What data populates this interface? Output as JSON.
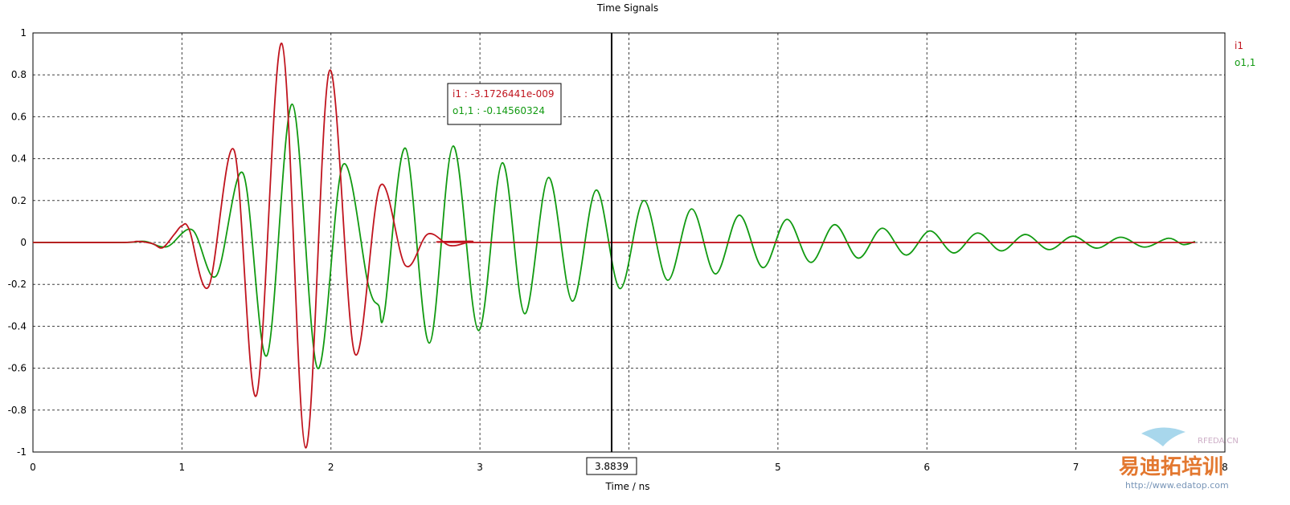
{
  "chart_data": {
    "type": "line",
    "title": "Time Signals",
    "xlabel": "Time / ns",
    "ylabel": "",
    "xlim": [
      0,
      8
    ],
    "ylim": [
      -1,
      1
    ],
    "x_ticks": [
      0,
      1,
      2,
      3,
      4,
      5,
      6,
      7,
      8
    ],
    "y_ticks": [
      -1,
      -0.8,
      -0.6,
      -0.4,
      -0.2,
      0,
      0.2,
      0.4,
      0.6,
      0.8,
      1
    ],
    "x_tick_labels": [
      "0",
      "1",
      "2",
      "3",
      "",
      "5",
      "6",
      "7",
      "8"
    ],
    "y_tick_labels": [
      "-1",
      "-0.8",
      "-0.6",
      "-0.4",
      "-0.2",
      "0",
      "0.2",
      "0.4",
      "0.6",
      "0.8",
      "1"
    ],
    "grid": true,
    "legend_position": "right",
    "cursor": {
      "x": 3.8839,
      "label": "3.8839",
      "readouts": [
        {
          "series": "i1",
          "text": "i1 : -3.1726441e-009"
        },
        {
          "series": "o1,1",
          "text": "o1,1 : -0.14560324"
        }
      ]
    },
    "series": [
      {
        "name": "i1",
        "color": "#c0141e",
        "points": [
          [
            0,
            0
          ],
          [
            0.6,
            0
          ],
          [
            0.7,
            0.005
          ],
          [
            0.8,
            -0.005
          ],
          [
            0.87,
            -0.025
          ],
          [
            0.95,
            0.04
          ],
          [
            1.0,
            0.08
          ],
          [
            1.05,
            0.06
          ],
          [
            1.18,
            -0.21
          ],
          [
            1.35,
            0.44
          ],
          [
            1.5,
            -0.73
          ],
          [
            1.67,
            0.95
          ],
          [
            1.83,
            -0.98
          ],
          [
            1.99,
            0.82
          ],
          [
            2.16,
            -0.53
          ],
          [
            2.33,
            0.27
          ],
          [
            2.5,
            -0.11
          ],
          [
            2.65,
            0.04
          ],
          [
            2.8,
            -0.015
          ],
          [
            2.95,
            0.005
          ],
          [
            3.1,
            0
          ],
          [
            7.8,
            0
          ]
        ]
      },
      {
        "name": "o1,1",
        "color": "#119a11",
        "points": [
          [
            0,
            0
          ],
          [
            0.6,
            0
          ],
          [
            0.75,
            0.005
          ],
          [
            0.9,
            -0.02
          ],
          [
            1.07,
            0.06
          ],
          [
            1.23,
            -0.16
          ],
          [
            1.41,
            0.33
          ],
          [
            1.57,
            -0.54
          ],
          [
            1.74,
            0.66
          ],
          [
            1.91,
            -0.6
          ],
          [
            2.08,
            0.37
          ],
          [
            2.25,
            -0.2
          ],
          [
            2.32,
            -0.3
          ],
          [
            2.36,
            -0.33
          ],
          [
            2.5,
            0.45
          ],
          [
            2.66,
            -0.48
          ],
          [
            2.82,
            0.46
          ],
          [
            2.99,
            -0.42
          ],
          [
            3.15,
            0.38
          ],
          [
            3.3,
            -0.34
          ],
          [
            3.46,
            0.31
          ],
          [
            3.62,
            -0.28
          ],
          [
            3.78,
            0.25
          ],
          [
            3.94,
            -0.22
          ],
          [
            4.1,
            0.2
          ],
          [
            4.26,
            -0.18
          ],
          [
            4.42,
            0.16
          ],
          [
            4.58,
            -0.15
          ],
          [
            4.74,
            0.13
          ],
          [
            4.9,
            -0.12
          ],
          [
            5.06,
            0.11
          ],
          [
            5.22,
            -0.095
          ],
          [
            5.38,
            0.085
          ],
          [
            5.54,
            -0.075
          ],
          [
            5.7,
            0.068
          ],
          [
            5.86,
            -0.06
          ],
          [
            6.02,
            0.055
          ],
          [
            6.18,
            -0.05
          ],
          [
            6.34,
            0.045
          ],
          [
            6.5,
            -0.04
          ],
          [
            6.66,
            0.038
          ],
          [
            6.82,
            -0.034
          ],
          [
            6.98,
            0.03
          ],
          [
            7.14,
            -0.027
          ],
          [
            7.3,
            0.025
          ],
          [
            7.46,
            -0.022
          ],
          [
            7.62,
            0.02
          ],
          [
            7.72,
            -0.01
          ],
          [
            7.8,
            0.005
          ]
        ]
      }
    ]
  },
  "watermark": {
    "site": "RFEDA.CN",
    "brand": "易迪拓培训",
    "url": "http://www.edatop.com"
  }
}
